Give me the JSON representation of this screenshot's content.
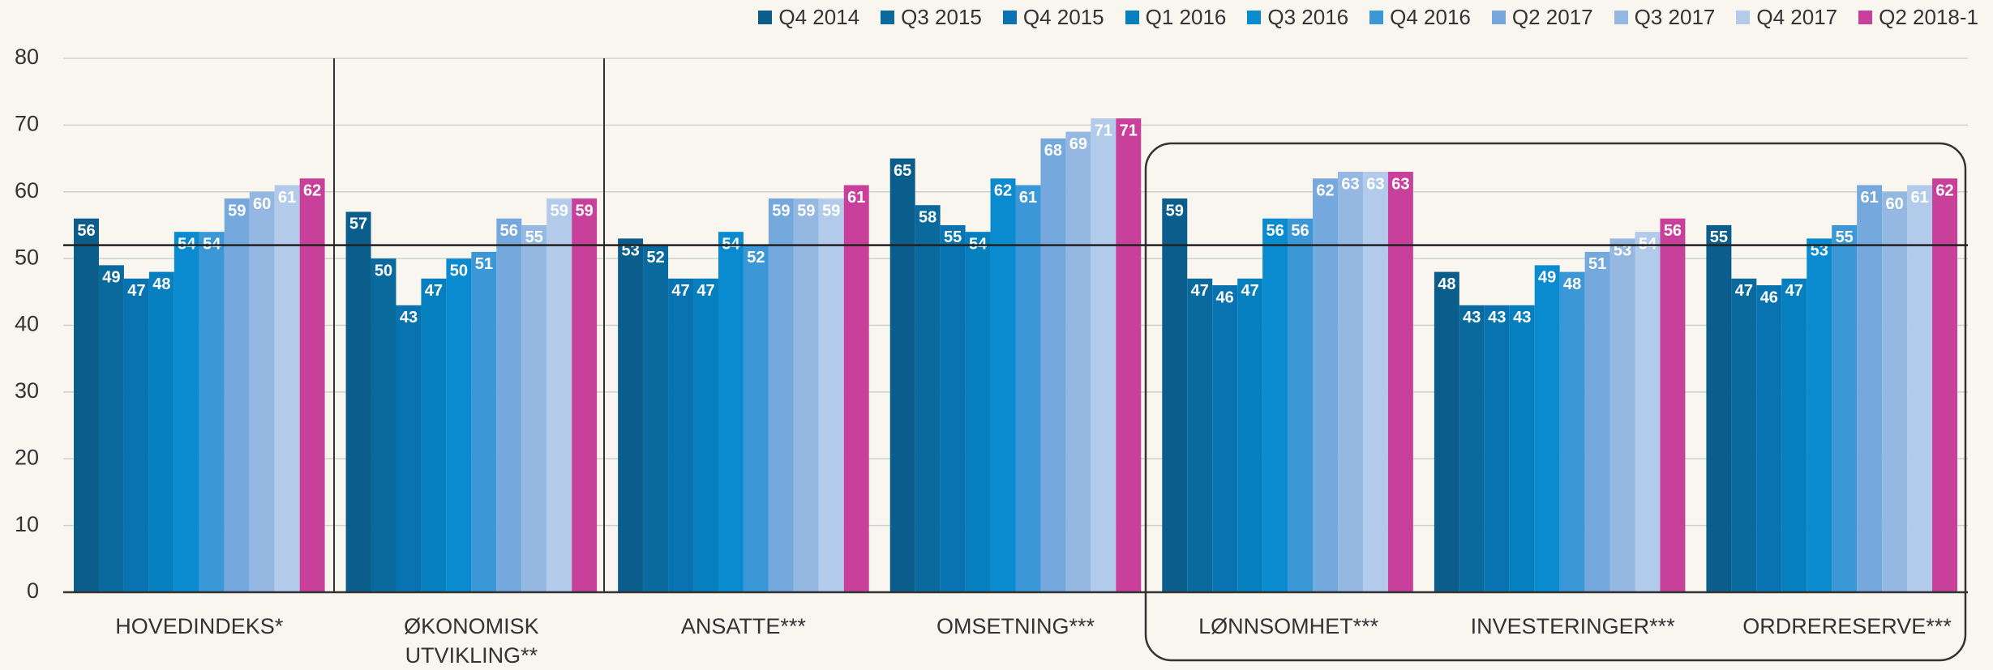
{
  "chart_data": {
    "type": "bar",
    "categories": [
      "HOVEDINDEKS*",
      "ØKONOMISK UTVIKLING**",
      "ANSATTE***",
      "OMSETNING***",
      "LØNNSOMHET***",
      "INVESTERINGER***",
      "ORDRERESERVE***"
    ],
    "series": [
      {
        "name": "Q4 2014",
        "color": "#0b5e8c",
        "values": [
          56,
          57,
          53,
          65,
          59,
          48,
          55
        ]
      },
      {
        "name": "Q3 2015",
        "color": "#0a6a9e",
        "values": [
          49,
          50,
          52,
          58,
          47,
          43,
          47
        ]
      },
      {
        "name": "Q4 2015",
        "color": "#0873b0",
        "values": [
          47,
          43,
          47,
          55,
          46,
          43,
          46
        ]
      },
      {
        "name": "Q1 2016",
        "color": "#067fbf",
        "values": [
          48,
          47,
          47,
          54,
          47,
          43,
          47
        ]
      },
      {
        "name": "Q3 2016",
        "color": "#0a8bd0",
        "values": [
          54,
          50,
          54,
          62,
          56,
          49,
          53
        ]
      },
      {
        "name": "Q4 2016",
        "color": "#3c97d6",
        "values": [
          54,
          51,
          52,
          61,
          56,
          48,
          55
        ]
      },
      {
        "name": "Q2 2017",
        "color": "#75a8dc",
        "values": [
          59,
          56,
          59,
          68,
          62,
          51,
          61
        ]
      },
      {
        "name": "Q3 2017",
        "color": "#94b8e2",
        "values": [
          60,
          55,
          59,
          69,
          63,
          53,
          60
        ]
      },
      {
        "name": "Q4 2017",
        "color": "#b3cbea",
        "values": [
          61,
          59,
          59,
          71,
          63,
          54,
          61
        ]
      },
      {
        "name": "Q2 2018-1",
        "color": "#c9409a",
        "values": [
          62,
          59,
          61,
          71,
          63,
          56,
          62
        ]
      }
    ],
    "reference_line": 52,
    "ylim": [
      0,
      80
    ],
    "yticks": [
      0,
      10,
      20,
      30,
      40,
      50,
      60,
      70,
      80
    ],
    "grid": true
  }
}
